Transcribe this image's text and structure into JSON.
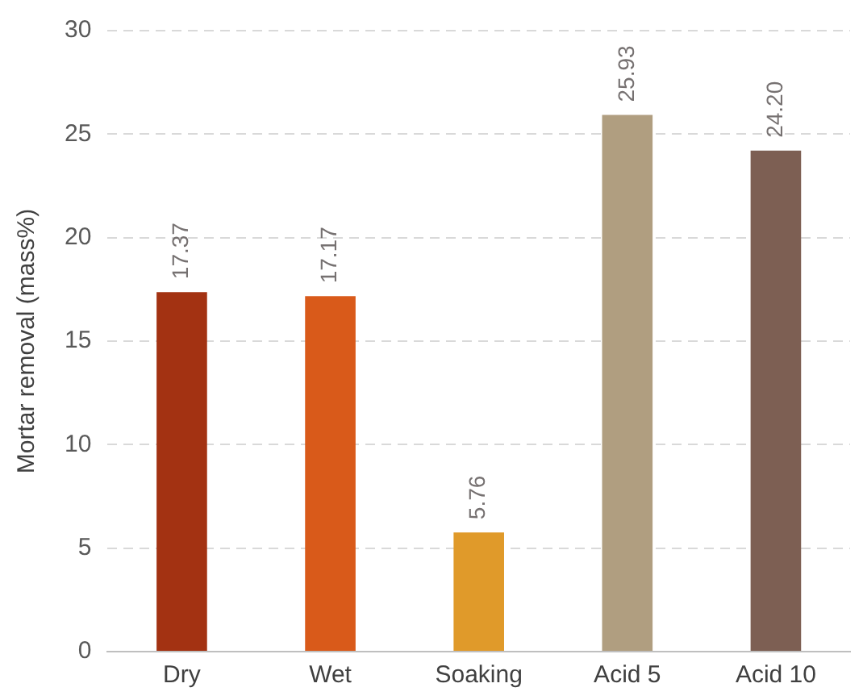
{
  "chart_data": {
    "type": "bar",
    "ylabel": "Mortar removal (mass%)",
    "categories": [
      "Dry",
      "Wet",
      "Soaking",
      "Acid 5",
      "Acid 10"
    ],
    "values": [
      17.37,
      17.17,
      5.76,
      25.93,
      24.2
    ],
    "value_labels": [
      "17.37",
      "17.17",
      "5.76",
      "25.93",
      "24.20"
    ],
    "colors": [
      "#a33212",
      "#d95a1a",
      "#e09a2a",
      "#b09e80",
      "#7d5f53"
    ],
    "ylim": [
      0,
      30
    ],
    "yticks": [
      0,
      5,
      10,
      15,
      20,
      25,
      30
    ],
    "grid": "y",
    "legend": false
  }
}
